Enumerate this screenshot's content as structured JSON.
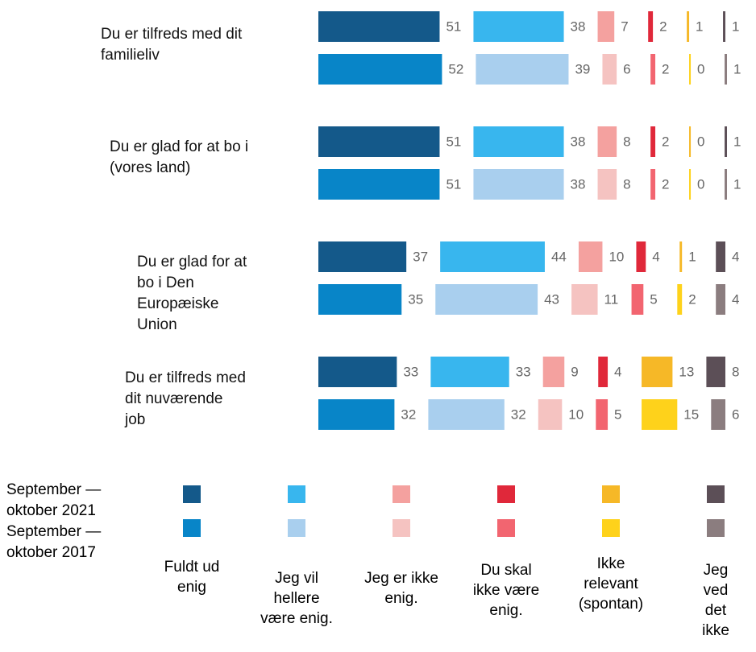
{
  "chart_data": {
    "type": "bar",
    "categories": [
      "Du er tilfreds med dit familieliv",
      "Du er glad for at bo i (vores land)",
      "Du er glad for at bo i Den Europæiske Union",
      "Du er tilfreds med dit nuværende job"
    ],
    "answers": [
      "Fuldt ud enig",
      "Jeg vil hellere være enig.",
      "Jeg er ikke enig.",
      "Du skal ikke være enig.",
      "Ikke relevant (spontan)",
      "Jeg ved det ikke"
    ],
    "series": [
      {
        "name": "September — oktober 2021",
        "colors": [
          "#14598a",
          "#38b6ee",
          "#f4a19f",
          "#e0283a",
          "#f6b827",
          "#5c4f57"
        ],
        "values": [
          [
            51,
            38,
            7,
            2,
            1,
            1
          ],
          [
            51,
            38,
            8,
            2,
            0,
            1
          ],
          [
            37,
            44,
            10,
            4,
            1,
            4
          ],
          [
            33,
            33,
            9,
            4,
            13,
            8
          ]
        ]
      },
      {
        "name": "September — oktober 2017",
        "colors": [
          "#0885c8",
          "#a9cfee",
          "#f5c3c1",
          "#f26570",
          "#fed21b",
          "#8b7d7f"
        ],
        "values": [
          [
            52,
            39,
            6,
            2,
            0,
            1
          ],
          [
            51,
            38,
            8,
            2,
            0,
            1
          ],
          [
            35,
            43,
            11,
            5,
            2,
            4
          ],
          [
            32,
            32,
            10,
            5,
            15,
            6
          ]
        ]
      }
    ]
  }
}
